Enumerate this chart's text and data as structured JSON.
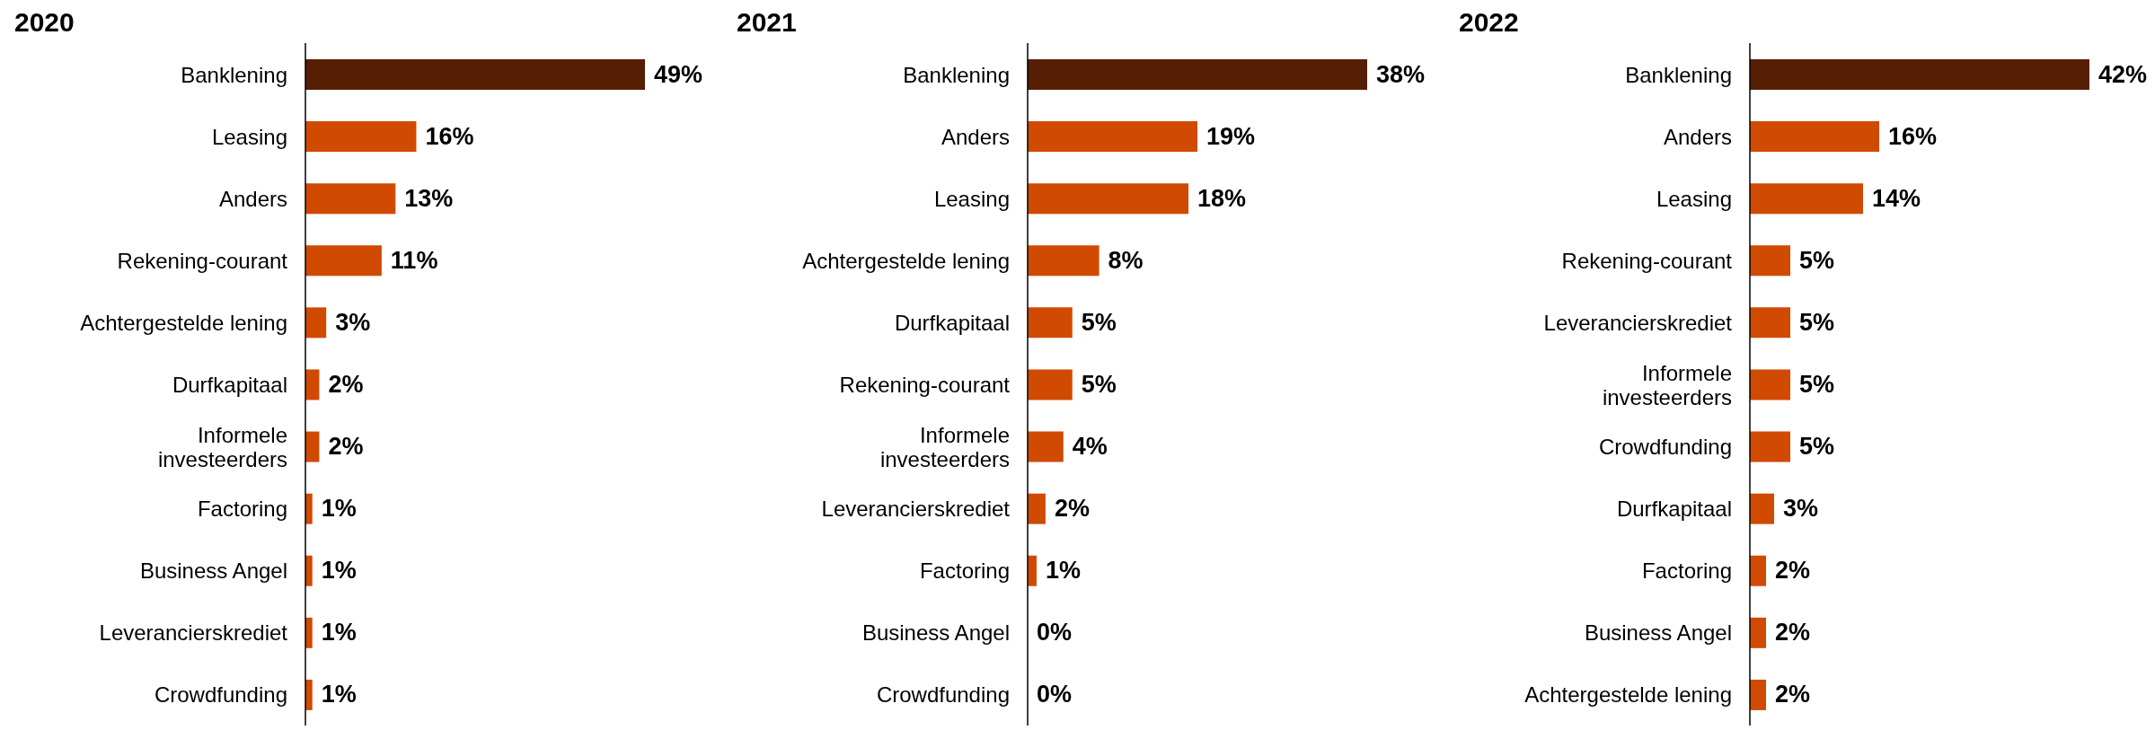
{
  "chart_data": [
    {
      "type": "bar",
      "orientation": "horizontal",
      "title": "2020",
      "categories": [
        "Banklening",
        "Leasing",
        "Anders",
        "Rekening-courant",
        "Achtergestelde lening",
        "Durfkapitaal",
        "Informele investeerders",
        "Factoring",
        "Business Angel",
        "Leverancierskrediet",
        "Crowdfunding"
      ],
      "values": [
        49,
        16,
        13,
        11,
        3,
        2,
        2,
        1,
        1,
        1,
        1
      ],
      "value_labels": [
        "49%",
        "16%",
        "13%",
        "11%",
        "3%",
        "2%",
        "2%",
        "1%",
        "1%",
        "1%",
        "1%"
      ],
      "colors": [
        "#561e03",
        "#d04a02",
        "#d04a02",
        "#d04a02",
        "#d04a02",
        "#d04a02",
        "#d04a02",
        "#d04a02",
        "#d04a02",
        "#d04a02",
        "#d04a02"
      ],
      "grid": false,
      "legend": false,
      "tick_labels": "y"
    },
    {
      "type": "bar",
      "orientation": "horizontal",
      "title": "2021",
      "categories": [
        "Banklening",
        "Anders",
        "Leasing",
        "Achtergestelde lening",
        "Durfkapitaal",
        "Rekening-courant",
        "Informele investeerders",
        "Leverancierskrediet",
        "Factoring",
        "Business Angel",
        "Crowdfunding"
      ],
      "values": [
        38,
        19,
        18,
        8,
        5,
        5,
        4,
        2,
        1,
        0,
        0
      ],
      "value_labels": [
        "38%",
        "19%",
        "18%",
        "8%",
        "5%",
        "5%",
        "4%",
        "2%",
        "1%",
        "0%",
        "0%"
      ],
      "colors": [
        "#561e03",
        "#d04a02",
        "#d04a02",
        "#d04a02",
        "#d04a02",
        "#d04a02",
        "#d04a02",
        "#d04a02",
        "#d04a02",
        "#d04a02",
        "#d04a02"
      ],
      "grid": false,
      "legend": false,
      "tick_labels": "y"
    },
    {
      "type": "bar",
      "orientation": "horizontal",
      "title": "2022",
      "categories": [
        "Banklening",
        "Anders",
        "Leasing",
        "Rekening-courant",
        "Leverancierskrediet",
        "Informele investeerders",
        "Crowdfunding",
        "Durfkapitaal",
        "Factoring",
        "Business Angel",
        "Achtergestelde lening"
      ],
      "values": [
        42,
        16,
        14,
        5,
        5,
        5,
        5,
        3,
        2,
        2,
        2
      ],
      "value_labels": [
        "42%",
        "16%",
        "14%",
        "5%",
        "5%",
        "5%",
        "5%",
        "3%",
        "2%",
        "2%",
        "2%"
      ],
      "colors": [
        "#561e03",
        "#d04a02",
        "#d04a02",
        "#d04a02",
        "#d04a02",
        "#d04a02",
        "#d04a02",
        "#d04a02",
        "#d04a02",
        "#d04a02",
        "#d04a02"
      ],
      "grid": false,
      "legend": false,
      "tick_labels": "y"
    }
  ]
}
